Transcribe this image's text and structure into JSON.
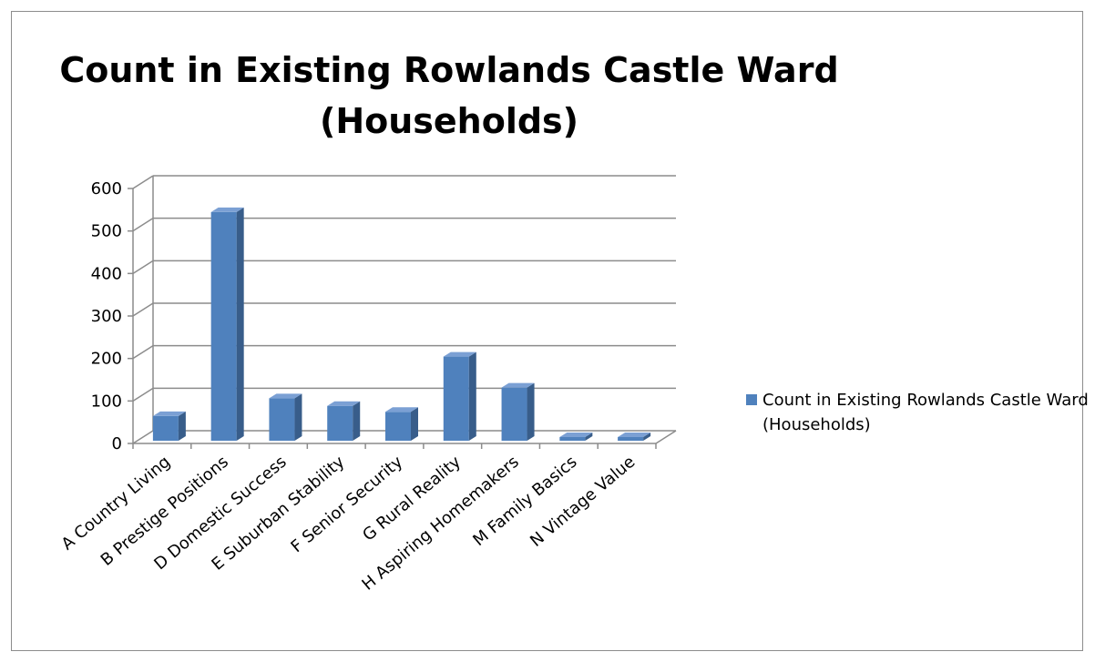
{
  "chart_data": {
    "type": "bar",
    "title": "Count in Existing Rowlands Castle Ward (Households)",
    "xlabel": "",
    "ylabel": "",
    "categories": [
      "A Country Living",
      "B Prestige Positions",
      "D Domestic Success",
      "E Suburban Stability",
      "F Senior Security",
      "G Rural Reality",
      "H Aspiring Homemakers",
      "M Family Basics",
      "N Vintage Value"
    ],
    "series": [
      {
        "name": "Count in Existing Rowlands Castle Ward (Households)",
        "values": [
          58,
          538,
          100,
          82,
          68,
          198,
          125,
          6,
          5
        ],
        "color": "#4f81bd"
      }
    ],
    "ylim": [
      0,
      600
    ],
    "yticks": [
      0,
      100,
      200,
      300,
      400,
      500,
      600
    ],
    "grid": true,
    "legend_position": "right",
    "style": "3d-column"
  }
}
